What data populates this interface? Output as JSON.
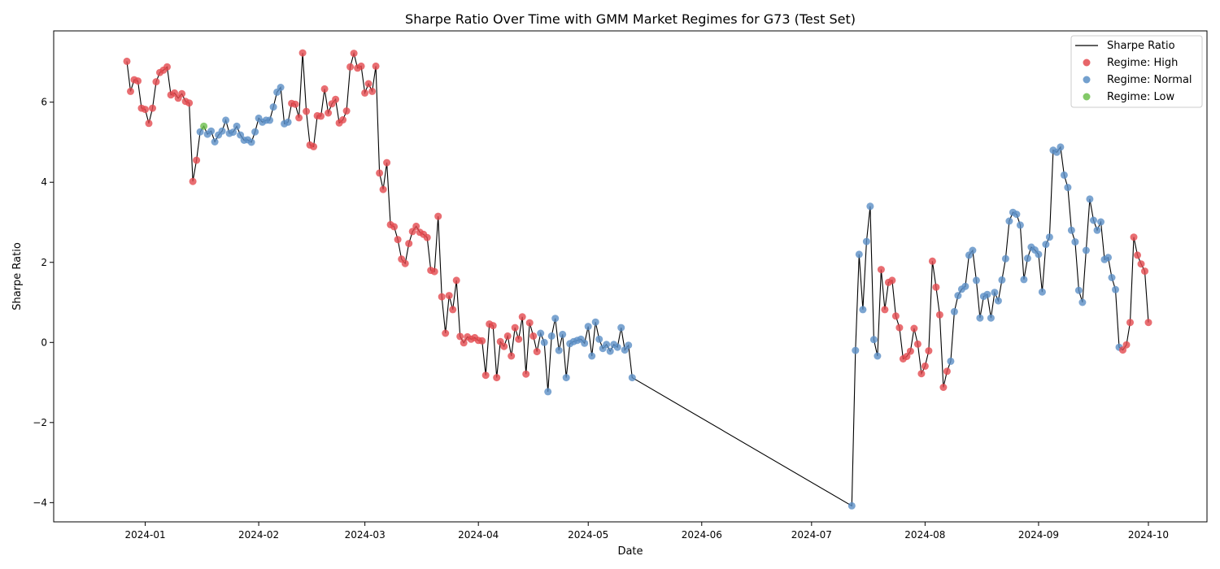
{
  "chart_data": {
    "type": "scatter",
    "title": "Sharpe Ratio Over Time with GMM Market Regimes for G73 (Test Set)",
    "xlabel": "Date",
    "ylabel": "Sharpe Ratio",
    "xlim": [
      "2023-12-07",
      "2024-10-17"
    ],
    "ylim": [
      -4.48,
      7.78
    ],
    "xticks": [
      "2024-01",
      "2024-02",
      "2024-03",
      "2024-04",
      "2024-05",
      "2024-06",
      "2024-07",
      "2024-08",
      "2024-09",
      "2024-10"
    ],
    "yticks": [
      -4,
      -2,
      0,
      2,
      4,
      6
    ],
    "grid": false,
    "legend_position": "top-right",
    "legend": [
      "Sharpe Ratio",
      "Regime: High",
      "Regime: Normal",
      "Regime: Low"
    ],
    "regime_colors": {
      "H": "#e34a4f",
      "N": "#5b8fc6",
      "L": "#6dbf4e"
    },
    "line_color": "#000000",
    "points": [
      [
        "2023-12-27",
        7.02,
        "H"
      ],
      [
        "2023-12-28",
        6.27,
        "H"
      ],
      [
        "2023-12-29",
        6.56,
        "H"
      ],
      [
        "2023-12-30",
        6.53,
        "H"
      ],
      [
        "2023-12-31",
        5.85,
        "H"
      ],
      [
        "2024-01-01",
        5.82,
        "H"
      ],
      [
        "2024-01-02",
        5.47,
        "H"
      ],
      [
        "2024-01-03",
        5.85,
        "H"
      ],
      [
        "2024-01-04",
        6.51,
        "H"
      ],
      [
        "2024-01-05",
        6.74,
        "H"
      ],
      [
        "2024-01-06",
        6.8,
        "H"
      ],
      [
        "2024-01-07",
        6.88,
        "H"
      ],
      [
        "2024-01-08",
        6.18,
        "H"
      ],
      [
        "2024-01-09",
        6.23,
        "H"
      ],
      [
        "2024-01-10",
        6.1,
        "H"
      ],
      [
        "2024-01-11",
        6.21,
        "H"
      ],
      [
        "2024-01-12",
        6.02,
        "H"
      ],
      [
        "2024-01-13",
        5.98,
        "H"
      ],
      [
        "2024-01-14",
        4.02,
        "H"
      ],
      [
        "2024-01-15",
        4.55,
        "H"
      ],
      [
        "2024-01-16",
        5.26,
        "N"
      ],
      [
        "2024-01-17",
        5.4,
        "L"
      ],
      [
        "2024-01-18",
        5.2,
        "N"
      ],
      [
        "2024-01-19",
        5.28,
        "N"
      ],
      [
        "2024-01-20",
        5.01,
        "N"
      ],
      [
        "2024-01-21",
        5.18,
        "N"
      ],
      [
        "2024-01-22",
        5.28,
        "N"
      ],
      [
        "2024-01-23",
        5.55,
        "N"
      ],
      [
        "2024-01-24",
        5.22,
        "N"
      ],
      [
        "2024-01-25",
        5.25,
        "N"
      ],
      [
        "2024-01-26",
        5.4,
        "N"
      ],
      [
        "2024-01-27",
        5.18,
        "N"
      ],
      [
        "2024-01-28",
        5.05,
        "N"
      ],
      [
        "2024-01-29",
        5.06,
        "N"
      ],
      [
        "2024-01-30",
        5.0,
        "N"
      ],
      [
        "2024-01-31",
        5.26,
        "N"
      ],
      [
        "2024-02-01",
        5.6,
        "N"
      ],
      [
        "2024-02-02",
        5.5,
        "N"
      ],
      [
        "2024-02-03",
        5.55,
        "N"
      ],
      [
        "2024-02-04",
        5.55,
        "N"
      ],
      [
        "2024-02-05",
        5.88,
        "N"
      ],
      [
        "2024-02-06",
        6.25,
        "N"
      ],
      [
        "2024-02-07",
        6.37,
        "N"
      ],
      [
        "2024-02-08",
        5.46,
        "N"
      ],
      [
        "2024-02-09",
        5.5,
        "N"
      ],
      [
        "2024-02-10",
        5.97,
        "H"
      ],
      [
        "2024-02-11",
        5.95,
        "H"
      ],
      [
        "2024-02-12",
        5.61,
        "H"
      ],
      [
        "2024-02-13",
        7.23,
        "H"
      ],
      [
        "2024-02-14",
        5.77,
        "H"
      ],
      [
        "2024-02-15",
        4.93,
        "H"
      ],
      [
        "2024-02-16",
        4.89,
        "H"
      ],
      [
        "2024-02-17",
        5.66,
        "H"
      ],
      [
        "2024-02-18",
        5.65,
        "H"
      ],
      [
        "2024-02-19",
        6.33,
        "H"
      ],
      [
        "2024-02-20",
        5.73,
        "H"
      ],
      [
        "2024-02-21",
        5.96,
        "H"
      ],
      [
        "2024-02-22",
        6.07,
        "H"
      ],
      [
        "2024-02-23",
        5.48,
        "H"
      ],
      [
        "2024-02-24",
        5.56,
        "H"
      ],
      [
        "2024-02-25",
        5.78,
        "H"
      ],
      [
        "2024-02-26",
        6.88,
        "H"
      ],
      [
        "2024-02-27",
        7.22,
        "H"
      ],
      [
        "2024-02-28",
        6.85,
        "H"
      ],
      [
        "2024-02-29",
        6.9,
        "H"
      ],
      [
        "2024-03-01",
        6.23,
        "H"
      ],
      [
        "2024-03-02",
        6.46,
        "H"
      ],
      [
        "2024-03-03",
        6.27,
        "H"
      ],
      [
        "2024-03-04",
        6.9,
        "H"
      ],
      [
        "2024-03-05",
        4.23,
        "H"
      ],
      [
        "2024-03-06",
        3.82,
        "H"
      ],
      [
        "2024-03-07",
        4.49,
        "H"
      ],
      [
        "2024-03-08",
        2.94,
        "H"
      ],
      [
        "2024-03-09",
        2.89,
        "H"
      ],
      [
        "2024-03-10",
        2.57,
        "H"
      ],
      [
        "2024-03-11",
        2.08,
        "H"
      ],
      [
        "2024-03-12",
        1.97,
        "H"
      ],
      [
        "2024-03-13",
        2.47,
        "H"
      ],
      [
        "2024-03-14",
        2.77,
        "H"
      ],
      [
        "2024-03-15",
        2.9,
        "H"
      ],
      [
        "2024-03-16",
        2.75,
        "H"
      ],
      [
        "2024-03-17",
        2.7,
        "H"
      ],
      [
        "2024-03-18",
        2.62,
        "H"
      ],
      [
        "2024-03-19",
        1.8,
        "H"
      ],
      [
        "2024-03-20",
        1.77,
        "H"
      ],
      [
        "2024-03-21",
        3.15,
        "H"
      ],
      [
        "2024-03-22",
        1.14,
        "H"
      ],
      [
        "2024-03-23",
        0.23,
        "H"
      ],
      [
        "2024-03-24",
        1.17,
        "H"
      ],
      [
        "2024-03-25",
        0.82,
        "H"
      ],
      [
        "2024-03-26",
        1.55,
        "H"
      ],
      [
        "2024-03-27",
        0.15,
        "H"
      ],
      [
        "2024-03-28",
        -0.01,
        "H"
      ],
      [
        "2024-03-29",
        0.14,
        "H"
      ],
      [
        "2024-03-30",
        0.08,
        "H"
      ],
      [
        "2024-03-31",
        0.12,
        "H"
      ],
      [
        "2024-04-01",
        0.05,
        "H"
      ],
      [
        "2024-04-02",
        0.04,
        "H"
      ],
      [
        "2024-04-03",
        -0.82,
        "H"
      ],
      [
        "2024-04-04",
        0.46,
        "H"
      ],
      [
        "2024-04-05",
        0.42,
        "H"
      ],
      [
        "2024-04-06",
        -0.88,
        "H"
      ],
      [
        "2024-04-07",
        0.02,
        "H"
      ],
      [
        "2024-04-08",
        -0.1,
        "H"
      ],
      [
        "2024-04-09",
        0.16,
        "H"
      ],
      [
        "2024-04-10",
        -0.34,
        "H"
      ],
      [
        "2024-04-11",
        0.37,
        "H"
      ],
      [
        "2024-04-12",
        0.08,
        "H"
      ],
      [
        "2024-04-13",
        0.64,
        "H"
      ],
      [
        "2024-04-14",
        -0.79,
        "H"
      ],
      [
        "2024-04-15",
        0.49,
        "H"
      ],
      [
        "2024-04-16",
        0.16,
        "H"
      ],
      [
        "2024-04-17",
        -0.23,
        "H"
      ],
      [
        "2024-04-18",
        0.23,
        "N"
      ],
      [
        "2024-04-19",
        0.0,
        "N"
      ],
      [
        "2024-04-20",
        -1.23,
        "N"
      ],
      [
        "2024-04-21",
        0.16,
        "N"
      ],
      [
        "2024-04-22",
        0.6,
        "N"
      ],
      [
        "2024-04-23",
        -0.2,
        "N"
      ],
      [
        "2024-04-24",
        0.2,
        "N"
      ],
      [
        "2024-04-25",
        -0.88,
        "N"
      ],
      [
        "2024-04-26",
        -0.03,
        "N"
      ],
      [
        "2024-04-27",
        0.02,
        "N"
      ],
      [
        "2024-04-28",
        0.05,
        "N"
      ],
      [
        "2024-04-29",
        0.08,
        "N"
      ],
      [
        "2024-04-30",
        -0.02,
        "N"
      ],
      [
        "2024-05-01",
        0.4,
        "N"
      ],
      [
        "2024-05-02",
        -0.34,
        "N"
      ],
      [
        "2024-05-03",
        0.51,
        "N"
      ],
      [
        "2024-05-04",
        0.08,
        "N"
      ],
      [
        "2024-05-05",
        -0.15,
        "N"
      ],
      [
        "2024-05-06",
        -0.05,
        "N"
      ],
      [
        "2024-05-07",
        -0.22,
        "N"
      ],
      [
        "2024-05-08",
        -0.05,
        "N"
      ],
      [
        "2024-05-09",
        -0.12,
        "N"
      ],
      [
        "2024-05-10",
        0.37,
        "N"
      ],
      [
        "2024-05-11",
        -0.19,
        "N"
      ],
      [
        "2024-05-12",
        -0.07,
        "N"
      ],
      [
        "2024-05-13",
        -0.88,
        "N"
      ],
      [
        "2024-07-12",
        -4.08,
        "N"
      ],
      [
        "2024-07-13",
        -0.2,
        "N"
      ],
      [
        "2024-07-14",
        2.2,
        "N"
      ],
      [
        "2024-07-15",
        0.82,
        "N"
      ],
      [
        "2024-07-16",
        2.52,
        "N"
      ],
      [
        "2024-07-17",
        3.4,
        "N"
      ],
      [
        "2024-07-18",
        0.07,
        "N"
      ],
      [
        "2024-07-19",
        -0.34,
        "N"
      ],
      [
        "2024-07-20",
        1.82,
        "H"
      ],
      [
        "2024-07-21",
        0.82,
        "H"
      ],
      [
        "2024-07-22",
        1.5,
        "H"
      ],
      [
        "2024-07-23",
        1.55,
        "H"
      ],
      [
        "2024-07-24",
        0.66,
        "H"
      ],
      [
        "2024-07-25",
        0.37,
        "H"
      ],
      [
        "2024-07-26",
        -0.41,
        "H"
      ],
      [
        "2024-07-27",
        -0.35,
        "H"
      ],
      [
        "2024-07-28",
        -0.22,
        "H"
      ],
      [
        "2024-07-29",
        0.35,
        "H"
      ],
      [
        "2024-07-30",
        -0.04,
        "H"
      ],
      [
        "2024-07-31",
        -0.78,
        "H"
      ],
      [
        "2024-08-01",
        -0.59,
        "H"
      ],
      [
        "2024-08-02",
        -0.21,
        "H"
      ],
      [
        "2024-08-03",
        2.03,
        "H"
      ],
      [
        "2024-08-04",
        1.38,
        "H"
      ],
      [
        "2024-08-05",
        0.69,
        "H"
      ],
      [
        "2024-08-06",
        -1.12,
        "H"
      ],
      [
        "2024-08-07",
        -0.72,
        "H"
      ],
      [
        "2024-08-08",
        -0.47,
        "N"
      ],
      [
        "2024-08-09",
        0.77,
        "N"
      ],
      [
        "2024-08-10",
        1.17,
        "N"
      ],
      [
        "2024-08-11",
        1.33,
        "N"
      ],
      [
        "2024-08-12",
        1.4,
        "N"
      ],
      [
        "2024-08-13",
        2.18,
        "N"
      ],
      [
        "2024-08-14",
        2.3,
        "N"
      ],
      [
        "2024-08-15",
        1.55,
        "N"
      ],
      [
        "2024-08-16",
        0.61,
        "N"
      ],
      [
        "2024-08-17",
        1.15,
        "N"
      ],
      [
        "2024-08-18",
        1.2,
        "N"
      ],
      [
        "2024-08-19",
        0.61,
        "N"
      ],
      [
        "2024-08-20",
        1.25,
        "N"
      ],
      [
        "2024-08-21",
        1.04,
        "N"
      ],
      [
        "2024-08-22",
        1.56,
        "N"
      ],
      [
        "2024-08-23",
        2.09,
        "N"
      ],
      [
        "2024-08-24",
        3.03,
        "N"
      ],
      [
        "2024-08-25",
        3.25,
        "N"
      ],
      [
        "2024-08-26",
        3.2,
        "N"
      ],
      [
        "2024-08-27",
        2.93,
        "N"
      ],
      [
        "2024-08-28",
        1.57,
        "N"
      ],
      [
        "2024-08-29",
        2.1,
        "N"
      ],
      [
        "2024-08-30",
        2.38,
        "N"
      ],
      [
        "2024-08-31",
        2.31,
        "N"
      ],
      [
        "2024-09-01",
        2.2,
        "N"
      ],
      [
        "2024-09-02",
        1.26,
        "N"
      ],
      [
        "2024-09-03",
        2.45,
        "N"
      ],
      [
        "2024-09-04",
        2.63,
        "N"
      ],
      [
        "2024-09-05",
        4.8,
        "N"
      ],
      [
        "2024-09-06",
        4.75,
        "N"
      ],
      [
        "2024-09-07",
        4.88,
        "N"
      ],
      [
        "2024-09-08",
        4.18,
        "N"
      ],
      [
        "2024-09-09",
        3.87,
        "N"
      ],
      [
        "2024-09-10",
        2.8,
        "N"
      ],
      [
        "2024-09-11",
        2.51,
        "N"
      ],
      [
        "2024-09-12",
        1.3,
        "N"
      ],
      [
        "2024-09-13",
        1.0,
        "N"
      ],
      [
        "2024-09-14",
        2.3,
        "N"
      ],
      [
        "2024-09-15",
        3.58,
        "N"
      ],
      [
        "2024-09-16",
        3.05,
        "N"
      ],
      [
        "2024-09-17",
        2.8,
        "N"
      ],
      [
        "2024-09-18",
        3.01,
        "N"
      ],
      [
        "2024-09-19",
        2.07,
        "N"
      ],
      [
        "2024-09-20",
        2.12,
        "N"
      ],
      [
        "2024-09-21",
        1.62,
        "N"
      ],
      [
        "2024-09-22",
        1.32,
        "N"
      ],
      [
        "2024-09-23",
        -0.12,
        "N"
      ],
      [
        "2024-09-24",
        -0.19,
        "H"
      ],
      [
        "2024-09-25",
        -0.06,
        "H"
      ],
      [
        "2024-09-26",
        0.5,
        "H"
      ],
      [
        "2024-09-27",
        2.63,
        "H"
      ],
      [
        "2024-09-28",
        2.18,
        "H"
      ],
      [
        "2024-09-29",
        1.96,
        "H"
      ],
      [
        "2024-09-30",
        1.78,
        "H"
      ],
      [
        "2024-10-01",
        0.5,
        "H"
      ]
    ]
  }
}
